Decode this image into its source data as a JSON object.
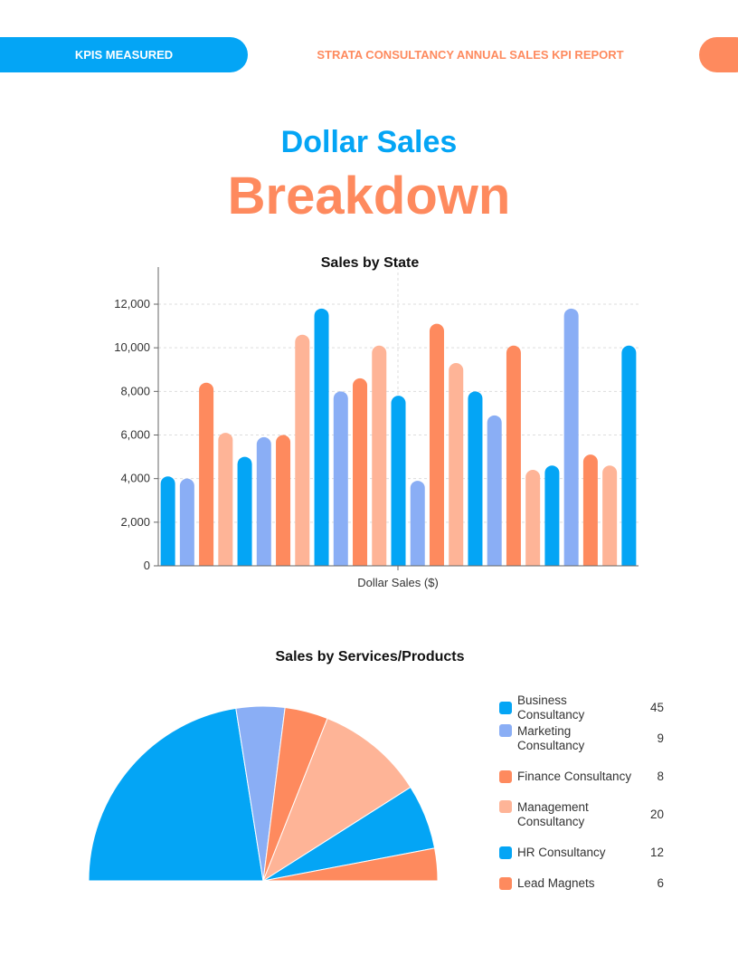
{
  "header": {
    "section": "KPIS MEASURED",
    "report": "STRATA CONSULTANCY ANNUAL SALES KPI REPORT"
  },
  "heading": {
    "line1": "Dollar Sales",
    "line2": "Breakdown"
  },
  "colors": {
    "blue": "#04a5f5",
    "periwinkle": "#8aaef5",
    "orange": "#fe8a5e",
    "peach": "#feb497"
  },
  "chart_data": [
    {
      "type": "bar",
      "title": "Sales by State",
      "xlabel": "Dollar Sales ($)",
      "ylabel": "",
      "ylim": [
        0,
        12000
      ],
      "yticks": [
        "0",
        "2,000",
        "4,000",
        "6,000",
        "8,000",
        "10,000",
        "12,000"
      ],
      "grid": true,
      "bar_colors": [
        "#04a5f5",
        "#8aaef5",
        "#fe8a5e",
        "#feb497"
      ],
      "values": [
        4100,
        4000,
        8400,
        6100,
        5000,
        5900,
        6000,
        10600,
        11800,
        8000,
        8600,
        10100,
        7800,
        3900,
        11100,
        9300,
        8000,
        6900,
        10100,
        4400,
        4600,
        11800,
        5100,
        4600,
        10100
      ]
    },
    {
      "type": "pie",
      "title": "Sales by Services/Products",
      "shape": "semicircle",
      "legend_position": "right",
      "slices": [
        {
          "label": "Business Consultancy",
          "value": "45",
          "color": "#04a5f5"
        },
        {
          "label": "Marketing Consultancy",
          "value": "9",
          "color": "#8aaef5"
        },
        {
          "label": "Finance Consultancy",
          "value": "8",
          "color": "#fe8a5e"
        },
        {
          "label": "Management Consultancy",
          "value": "20",
          "color": "#feb497"
        },
        {
          "label": "HR Consultancy",
          "value": "12",
          "color": "#04a5f5"
        },
        {
          "label": "Lead Magnets",
          "value": "6",
          "color": "#fe8a5e"
        }
      ]
    }
  ]
}
